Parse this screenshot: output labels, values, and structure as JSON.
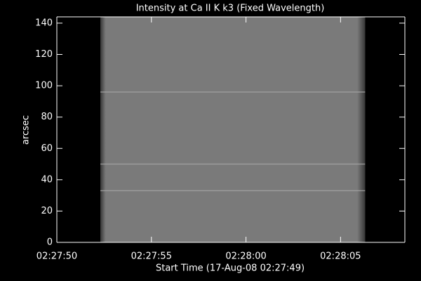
{
  "chart_data": {
    "type": "image",
    "title": "Intensity at Ca II K k3 (Fixed Wavelength)",
    "xlabel": "Start Time (17-Aug-08 02:27:49)",
    "ylabel": "arcsec",
    "xlim": [
      1,
      19.4
    ],
    "xticks": [
      {
        "value": 1,
        "label": "02:27:50"
      },
      {
        "value": 6,
        "label": "02:27:55"
      },
      {
        "value": 11,
        "label": "02:28:00"
      },
      {
        "value": 16,
        "label": "02:28:05"
      }
    ],
    "ylim": [
      0,
      144
    ],
    "yticks": [
      0,
      20,
      40,
      60,
      80,
      100,
      120,
      140
    ],
    "image_x": [
      3.3,
      17.3
    ],
    "image_y": [
      0,
      144
    ],
    "image_color": "#7a7a7a",
    "bright_rows": [
      96,
      50,
      33
    ],
    "bright_color": "#a8a8a8"
  }
}
